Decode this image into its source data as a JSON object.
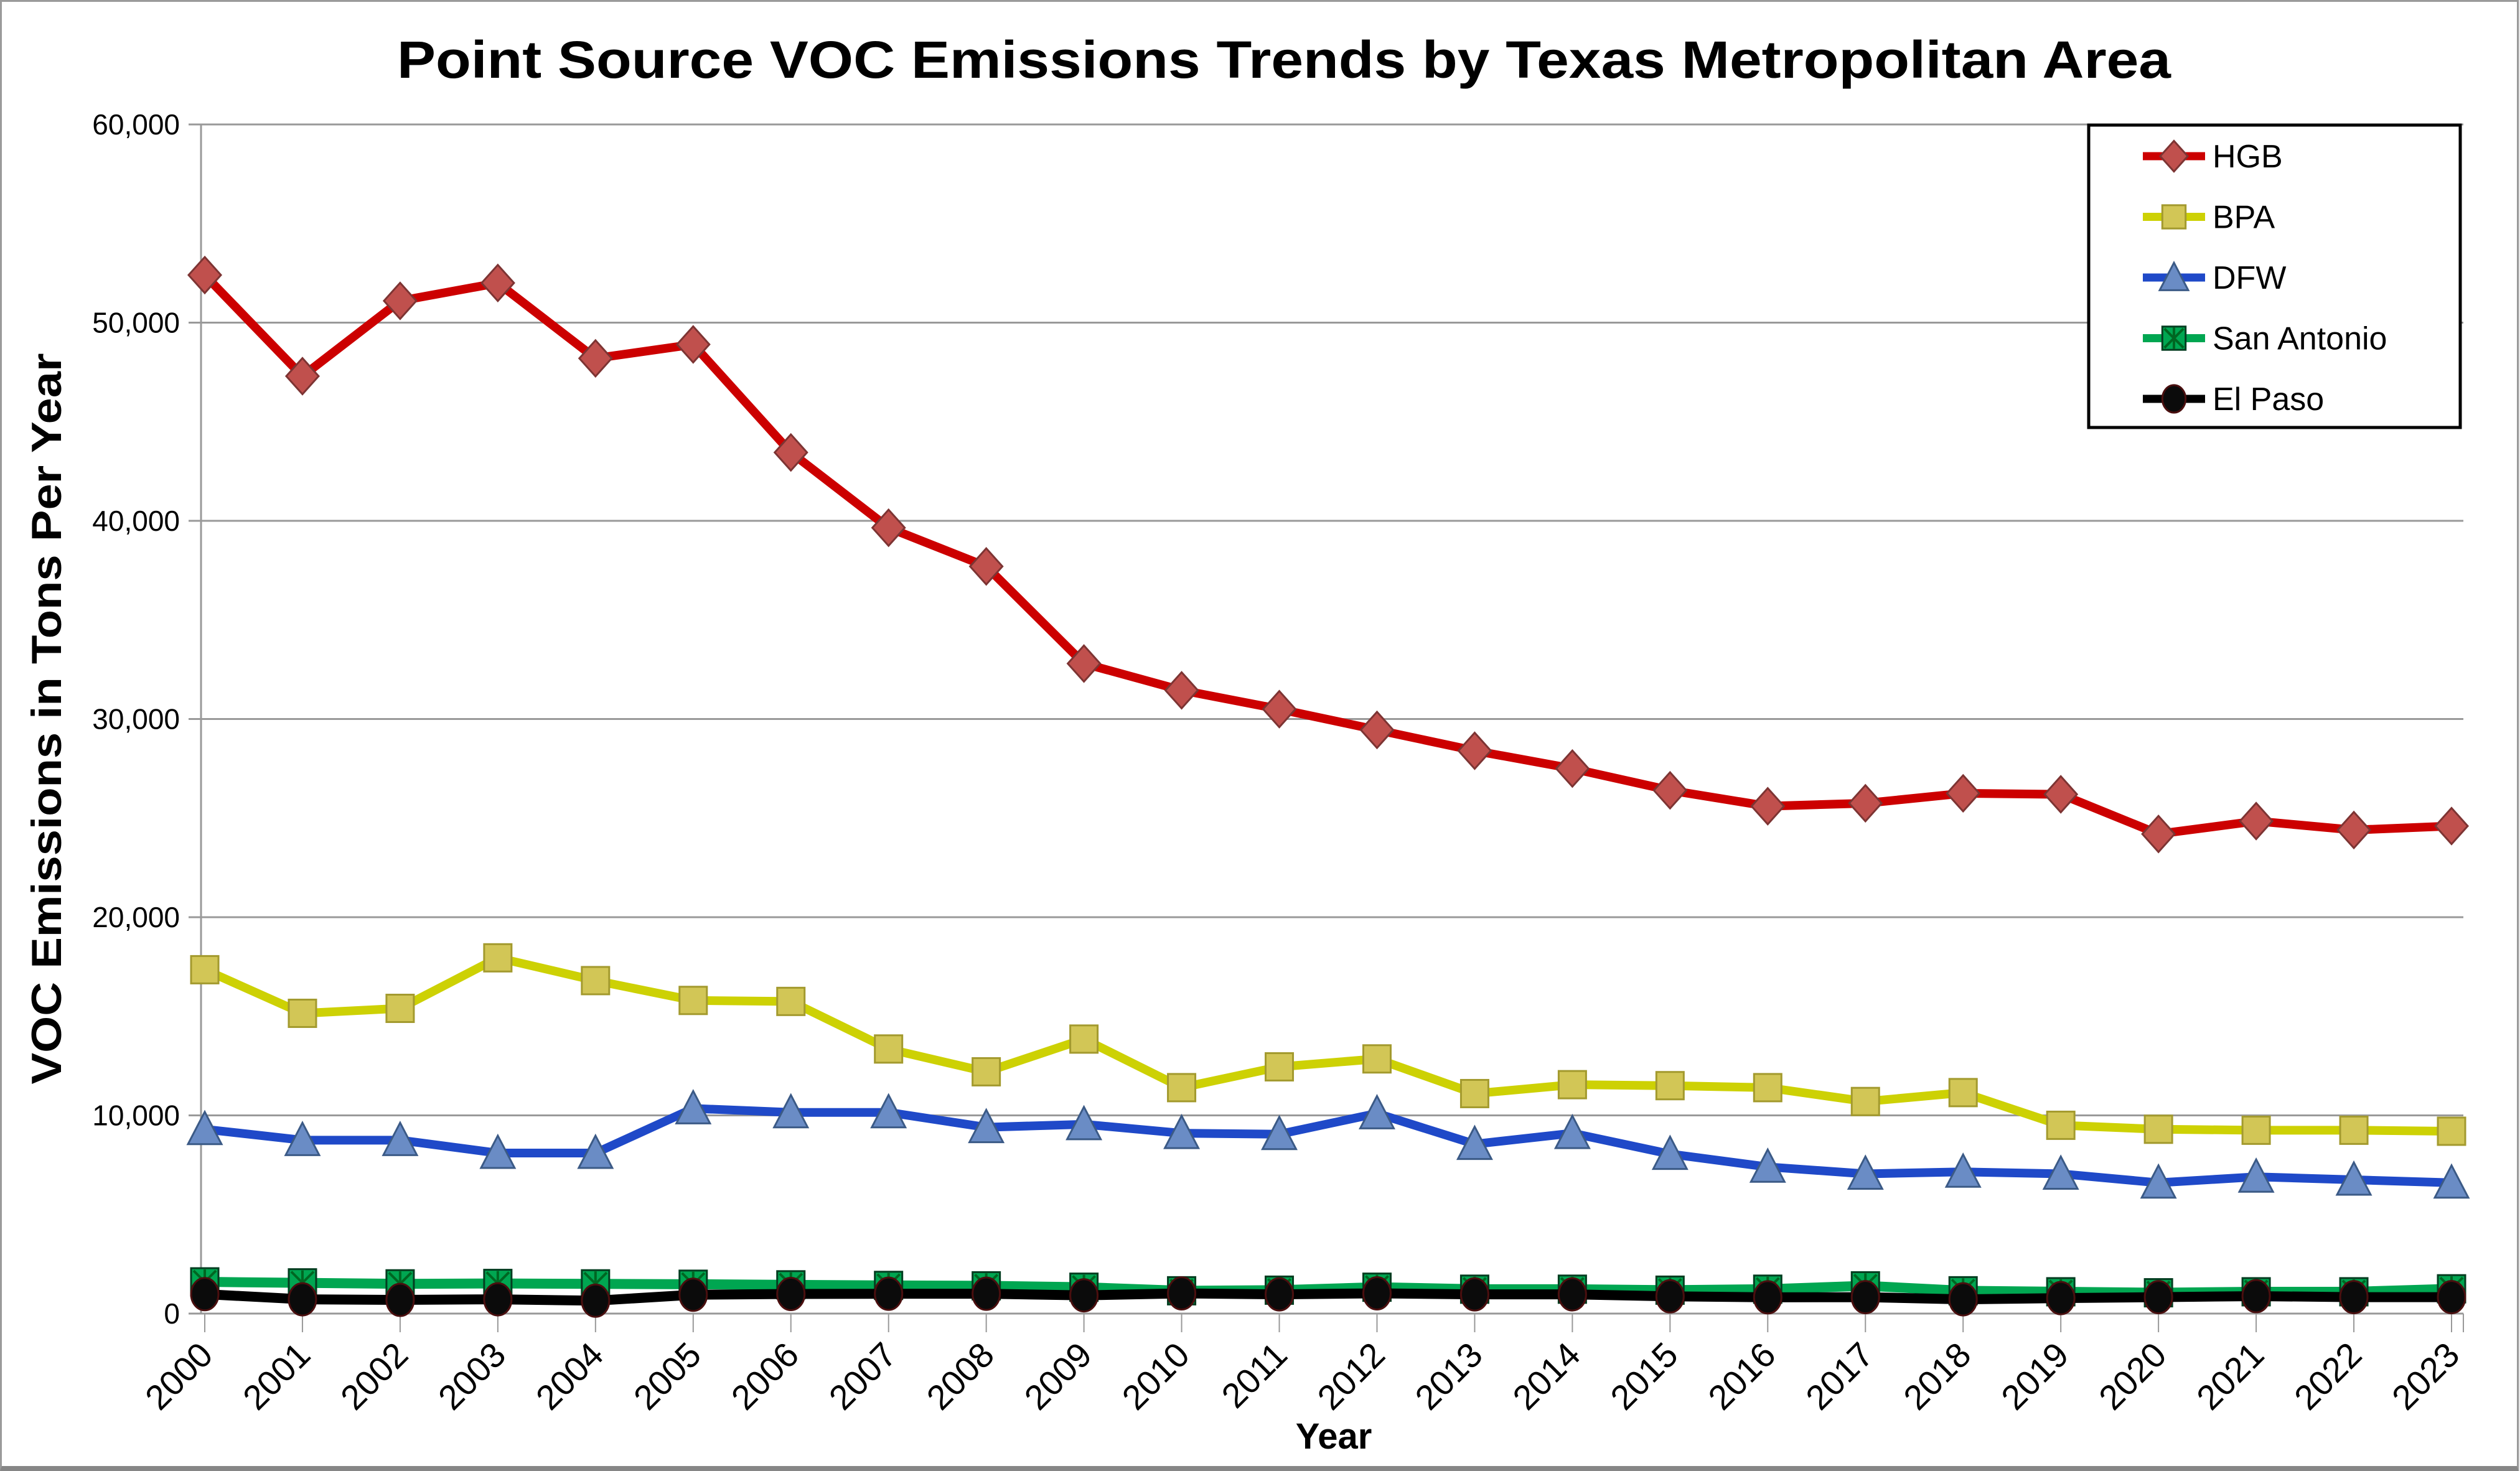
{
  "chart_data": {
    "type": "line",
    "title": "Point Source VOC Emissions Trends by Texas Metropolitan Area",
    "xlabel": "Year",
    "ylabel": "VOC Emissions in Tons Per Year",
    "x": [
      "2000",
      "2001",
      "2002",
      "2003",
      "2004",
      "2005",
      "2006",
      "2007",
      "2008",
      "2009",
      "2010",
      "2011",
      "2012",
      "2013",
      "2014",
      "2015",
      "2016",
      "2017",
      "2018",
      "2019",
      "2020",
      "2021",
      "2022",
      "2023"
    ],
    "ylim": [
      0,
      60000
    ],
    "ytick_step": 10000,
    "ytick_labels": [
      "0",
      "10,000",
      "20,000",
      "30,000",
      "40,000",
      "50,000",
      "60,000"
    ],
    "grid": "horizontal-only",
    "grid_color": "#999999",
    "axis_color": "#999999",
    "legend_position": "top-right",
    "legend_border_color": "#000000",
    "series": [
      {
        "name": "HGB",
        "marker": "diamond",
        "line_color": "#CC0000",
        "marker_color": "#C0504D",
        "marker_edge": "#7d3433",
        "values": [
          52400,
          47300,
          51100,
          52000,
          48200,
          48900,
          43450,
          39650,
          37700,
          32800,
          31450,
          30500,
          29450,
          28400,
          27500,
          26400,
          25600,
          25750,
          26250,
          26200,
          24200,
          24850,
          24400,
          24600
        ]
      },
      {
        "name": "BPA",
        "marker": "square",
        "line_color": "#CDD104",
        "marker_color": "#D2C656",
        "marker_edge": "#a39a2e",
        "values": [
          17350,
          15150,
          15400,
          17950,
          16800,
          15800,
          15750,
          13350,
          12200,
          13850,
          11400,
          12450,
          12850,
          11100,
          11550,
          11500,
          11400,
          10700,
          11150,
          9500,
          9300,
          9250,
          9250,
          9200
        ]
      },
      {
        "name": "DFW",
        "marker": "triangle",
        "line_color": "#1F49C8",
        "marker_color": "#6A8CC5",
        "marker_edge": "#3b5a86",
        "values": [
          9300,
          8750,
          8750,
          8100,
          8100,
          10350,
          10150,
          10150,
          9400,
          9550,
          9100,
          9050,
          10100,
          8550,
          9100,
          8050,
          7400,
          7050,
          7150,
          7050,
          6600,
          6900,
          6750,
          6600
        ]
      },
      {
        "name": "San Antonio",
        "marker": "asterisk-square",
        "line_color": "#00A651",
        "marker_color": "#00A651",
        "marker_edge": "#033d20",
        "values": [
          1600,
          1550,
          1500,
          1520,
          1500,
          1480,
          1450,
          1420,
          1400,
          1330,
          1150,
          1180,
          1330,
          1230,
          1230,
          1180,
          1230,
          1400,
          1150,
          1100,
          1050,
          1100,
          1100,
          1250
        ]
      },
      {
        "name": "El Paso",
        "marker": "circle",
        "line_color": "#000000",
        "marker_color": "#0b0b0b",
        "marker_edge": "#4a0f0f",
        "values": [
          980,
          720,
          690,
          720,
          650,
          950,
          990,
          1000,
          1000,
          920,
          1020,
          970,
          1020,
          970,
          970,
          870,
          820,
          830,
          720,
          780,
          830,
          880,
          830,
          830
        ]
      }
    ]
  }
}
